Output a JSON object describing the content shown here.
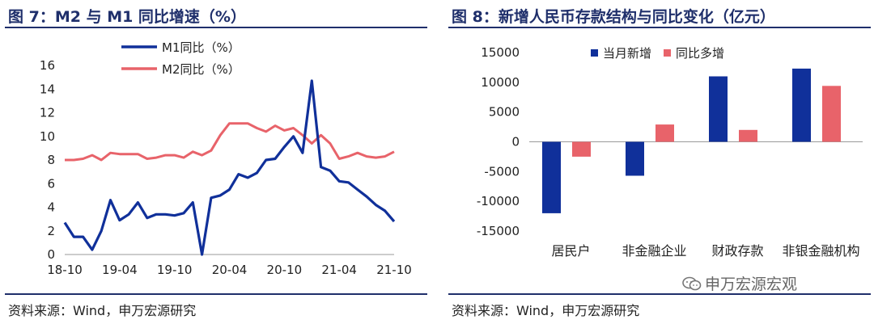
{
  "left": {
    "title": "图 7：M2 与 M1 同比增速（%）",
    "source": "资料来源：Wind，申万宏源研究"
  },
  "right": {
    "title": "图 8：新增人民币存款结构与同比变化（亿元）",
    "source": "资料来源：Wind，申万宏源研究"
  },
  "watermark": "申万宏源宏观",
  "colors": {
    "navy": "#10309a",
    "salmon": "#e8636a",
    "title": "#1f2f6b",
    "axis": "#9a9a9a"
  },
  "chart_data": [
    {
      "type": "line",
      "title": "M2 与 M1 同比增速（%）",
      "ylim": [
        0,
        16
      ],
      "yticks": [
        0,
        2,
        4,
        6,
        8,
        10,
        12,
        14,
        16
      ],
      "x": [
        "2018-10",
        "2018-11",
        "2018-12",
        "2019-01",
        "2019-02",
        "2019-03",
        "2019-04",
        "2019-05",
        "2019-06",
        "2019-07",
        "2019-08",
        "2019-09",
        "2019-10",
        "2019-11",
        "2019-12",
        "2020-01",
        "2020-02",
        "2020-03",
        "2020-04",
        "2020-05",
        "2020-06",
        "2020-07",
        "2020-08",
        "2020-09",
        "2020-10",
        "2020-11",
        "2020-12",
        "2021-01",
        "2021-02",
        "2021-03",
        "2021-04",
        "2021-05",
        "2021-06",
        "2021-07",
        "2021-08",
        "2021-09",
        "2021-10"
      ],
      "xtick_labels": [
        "18-10",
        "19-04",
        "19-10",
        "20-04",
        "20-10",
        "21-04",
        "21-10"
      ],
      "legend_placement": "top",
      "series": [
        {
          "name": "M1同比（%）",
          "values": [
            2.7,
            1.5,
            1.5,
            0.4,
            2.0,
            4.6,
            2.9,
            3.4,
            4.4,
            3.1,
            3.4,
            3.4,
            3.3,
            3.5,
            4.4,
            0.0,
            4.8,
            5.0,
            5.5,
            6.8,
            6.5,
            6.9,
            8.0,
            8.1,
            9.1,
            10.0,
            8.6,
            14.7,
            7.4,
            7.1,
            6.2,
            6.1,
            5.5,
            4.9,
            4.2,
            3.7,
            2.8
          ]
        },
        {
          "name": "M2同比（%）",
          "values": [
            8.0,
            8.0,
            8.1,
            8.4,
            8.0,
            8.6,
            8.5,
            8.5,
            8.5,
            8.1,
            8.2,
            8.4,
            8.4,
            8.2,
            8.7,
            8.4,
            8.8,
            10.1,
            11.1,
            11.1,
            11.1,
            10.7,
            10.4,
            10.9,
            10.5,
            10.7,
            10.1,
            9.4,
            10.1,
            9.4,
            8.1,
            8.3,
            8.6,
            8.3,
            8.2,
            8.3,
            8.7
          ]
        }
      ]
    },
    {
      "type": "bar",
      "title": "新增人民币存款结构与同比变化（亿元）",
      "categories": [
        "居民户",
        "非金融企业",
        "财政存款",
        "非银金融机构"
      ],
      "ylim": [
        -15000,
        15000
      ],
      "yticks": [
        -15000,
        -10000,
        -5000,
        0,
        5000,
        10000,
        15000
      ],
      "legend_placement": "top-left",
      "series": [
        {
          "name": "当月新增",
          "values": [
            -12000,
            -5700,
            11000,
            12300
          ]
        },
        {
          "name": "同比多增",
          "values": [
            -2500,
            2900,
            2000,
            9400
          ]
        }
      ]
    }
  ]
}
